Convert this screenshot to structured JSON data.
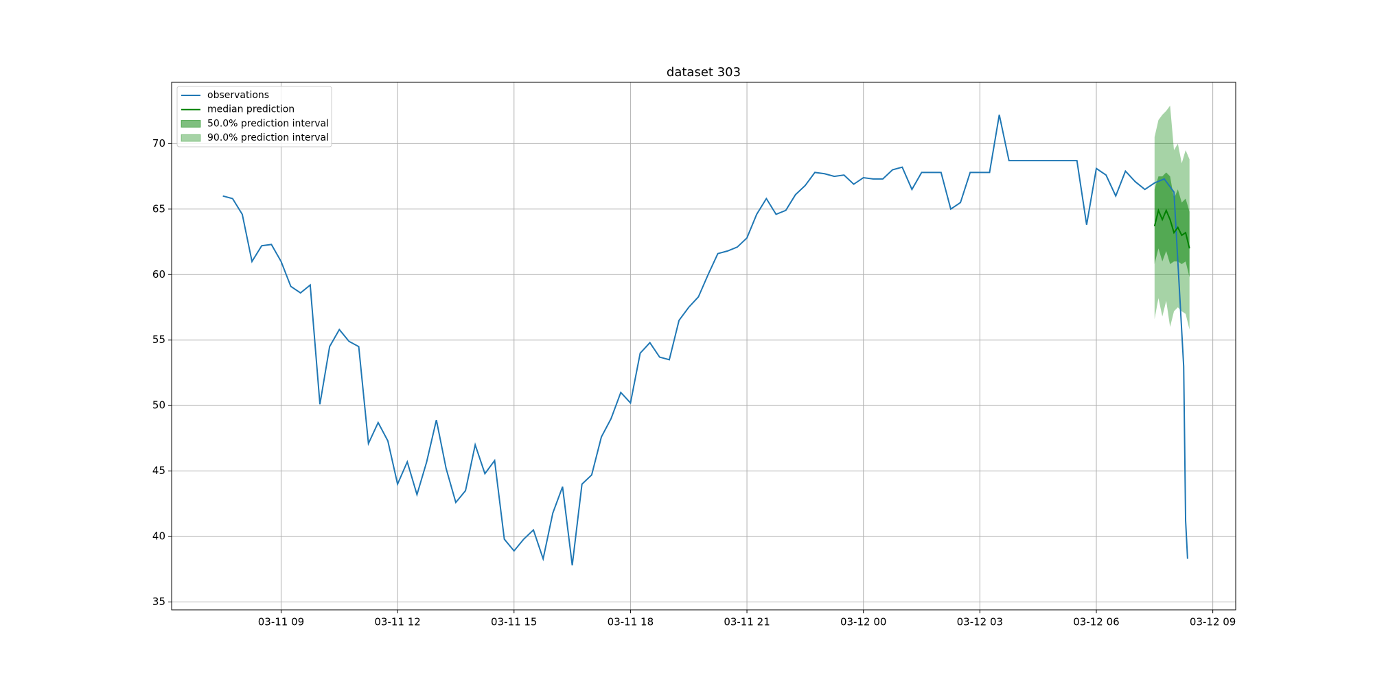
{
  "chart_data": {
    "type": "line",
    "title": "dataset 303",
    "x": [
      7.5,
      7.75,
      8,
      8.25,
      8.5,
      8.75,
      9,
      9.25,
      9.5,
      9.75,
      10,
      10.25,
      10.5,
      10.75,
      11,
      11.25,
      11.5,
      11.75,
      12,
      12.25,
      12.5,
      12.75,
      13,
      13.25,
      13.5,
      13.75,
      14,
      14.25,
      14.5,
      14.75,
      15,
      15.25,
      15.5,
      15.75,
      16,
      16.25,
      16.5,
      16.75,
      17,
      17.25,
      17.5,
      17.75,
      18,
      18.25,
      18.5,
      18.75,
      19,
      19.25,
      19.5,
      19.75,
      20,
      20.25,
      20.5,
      20.75,
      21,
      21.25,
      21.5,
      21.75,
      22,
      22.25,
      22.5,
      22.75,
      23,
      23.25,
      23.5,
      23.75,
      24,
      24.25,
      24.5,
      24.75,
      25,
      25.25,
      25.5,
      25.75,
      26,
      26.25,
      26.5,
      26.75,
      27,
      27.25,
      27.5,
      27.75,
      28,
      28.25,
      28.5,
      28.75,
      29,
      29.25,
      29.5,
      29.75,
      30,
      30.25,
      30.5,
      30.75,
      31,
      31.25,
      31.5,
      31.75,
      32,
      32.25,
      32.3,
      32.35
    ],
    "series": [
      {
        "name": "observations",
        "color": "#1f77b4",
        "values": [
          66.0,
          65.8,
          64.6,
          61.0,
          62.2,
          62.3,
          61.0,
          59.1,
          58.6,
          59.2,
          50.1,
          54.5,
          55.8,
          54.9,
          54.5,
          47.1,
          48.7,
          47.3,
          44.0,
          45.7,
          43.2,
          45.7,
          48.9,
          45.2,
          42.6,
          43.5,
          47.0,
          44.8,
          45.8,
          39.8,
          38.9,
          39.8,
          40.5,
          38.3,
          41.8,
          43.8,
          37.8,
          44.0,
          44.7,
          47.6,
          49.0,
          51.0,
          50.2,
          54.0,
          54.8,
          53.7,
          53.5,
          56.5,
          57.5,
          58.3,
          60.0,
          61.6,
          61.8,
          62.1,
          62.8,
          64.6,
          65.8,
          64.6,
          64.9,
          66.1,
          66.8,
          67.8,
          67.7,
          67.5,
          67.6,
          66.9,
          67.4,
          67.3,
          67.3,
          68.0,
          68.2,
          66.5,
          67.8,
          67.8,
          67.8,
          65.0,
          65.5,
          67.8,
          67.8,
          67.8,
          72.2,
          68.7,
          68.7,
          68.7,
          68.7,
          68.7,
          68.7,
          68.7,
          68.7,
          63.8,
          68.1,
          67.6,
          66.0,
          67.9,
          67.1,
          66.5,
          67.0,
          67.3,
          66.3,
          53.0,
          41.2,
          38.3
        ]
      },
      {
        "name": "median prediction",
        "color": "#008000",
        "x": [
          31.5,
          31.6,
          31.7,
          31.8,
          31.9,
          32.0,
          32.1,
          32.2,
          32.3,
          32.4
        ],
        "values": [
          63.7,
          64.9,
          64.2,
          64.9,
          64.2,
          63.2,
          63.6,
          63.0,
          63.2,
          62.0
        ]
      },
      {
        "name": "50.0% prediction interval",
        "type": "band",
        "color": "#008000",
        "alpha": 0.5,
        "x": [
          31.5,
          31.6,
          31.7,
          31.8,
          31.9,
          32.0,
          32.1,
          32.2,
          32.3,
          32.4
        ],
        "lower": [
          60.8,
          62.0,
          61.0,
          61.8,
          60.8,
          61.0,
          61.0,
          60.8,
          61.0,
          59.8
        ],
        "upper": [
          66.5,
          67.5,
          67.5,
          67.8,
          67.5,
          65.8,
          66.5,
          65.5,
          65.8,
          64.8
        ]
      },
      {
        "name": "90.0% prediction interval",
        "type": "band",
        "color": "#008000",
        "alpha": 0.35,
        "x": [
          31.5,
          31.6,
          31.7,
          31.8,
          31.9,
          32.0,
          32.1,
          32.2,
          32.3,
          32.4
        ],
        "lower": [
          56.6,
          58.2,
          56.8,
          58.0,
          56.0,
          57.2,
          57.5,
          57.2,
          57.0,
          55.8
        ],
        "upper": [
          70.5,
          71.8,
          72.2,
          72.5,
          72.9,
          69.5,
          70.0,
          68.5,
          69.5,
          68.8
        ]
      }
    ],
    "xlim": [
      6.18,
      33.59
    ],
    "xticks": [
      {
        "value": 9,
        "label": "03-11 09"
      },
      {
        "value": 12,
        "label": "03-11 12"
      },
      {
        "value": 15,
        "label": "03-11 15"
      },
      {
        "value": 18,
        "label": "03-11 18"
      },
      {
        "value": 21,
        "label": "03-11 21"
      },
      {
        "value": 24,
        "label": "03-12 00"
      },
      {
        "value": 27,
        "label": "03-12 03"
      },
      {
        "value": 30,
        "label": "03-12 06"
      },
      {
        "value": 33,
        "label": "03-12 09"
      }
    ],
    "ylim": [
      34.4,
      74.68
    ],
    "yticks": [
      35,
      40,
      45,
      50,
      55,
      60,
      65,
      70
    ],
    "grid": true,
    "legend": "upper left"
  }
}
